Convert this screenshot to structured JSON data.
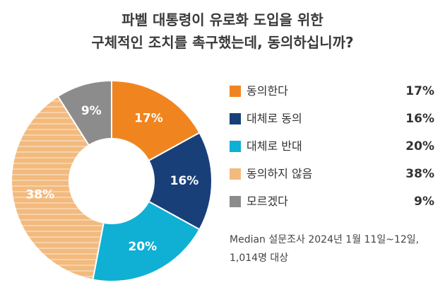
{
  "title": {
    "line1": "파벨 대통령이 유로화 도입을 위한",
    "line2": "구체적인 조치를 촉구했는데, 동의하십니까?"
  },
  "chart_data": {
    "type": "pie",
    "donut": true,
    "categories": [
      "동의한다",
      "대체로 동의",
      "대체로 반대",
      "동의하지 않음",
      "모르겠다"
    ],
    "values": [
      17,
      16,
      20,
      38,
      9
    ],
    "value_labels": [
      "17%",
      "16%",
      "20%",
      "38%",
      "9%"
    ],
    "colors": [
      "#F08520",
      "#183F78",
      "#0FB0D3",
      "#F3BA7E",
      "#8C8C8C"
    ],
    "legend_position": "right"
  },
  "source": {
    "line1": "Median 설문조사 2024년 1월 11일~12일,",
    "line2": "1,014명 대상"
  }
}
